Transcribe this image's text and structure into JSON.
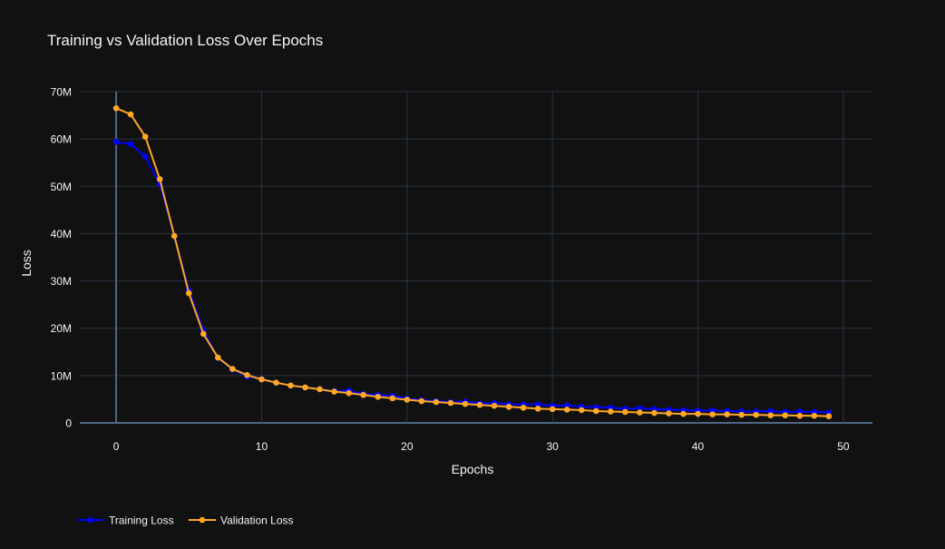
{
  "chart_data": {
    "type": "line",
    "title": "Training vs Validation Loss Over Epochs",
    "xlabel": "Epochs",
    "ylabel": "Loss",
    "xlim": [
      -2.5,
      52
    ],
    "ylim": [
      0,
      70000000
    ],
    "x_ticks": [
      0,
      10,
      20,
      30,
      40,
      50
    ],
    "x_tick_labels": [
      "0",
      "10",
      "20",
      "30",
      "40",
      "50"
    ],
    "y_ticks": [
      0,
      10000000,
      20000000,
      30000000,
      40000000,
      50000000,
      60000000,
      70000000
    ],
    "y_tick_labels": [
      "0",
      "10M",
      "20M",
      "30M",
      "40M",
      "50M",
      "60M",
      "70M"
    ],
    "grid": true,
    "legend_position": "bottom-left",
    "x": [
      0,
      1,
      2,
      3,
      4,
      5,
      6,
      7,
      8,
      9,
      10,
      11,
      12,
      13,
      14,
      15,
      16,
      17,
      18,
      19,
      20,
      21,
      22,
      23,
      24,
      25,
      26,
      27,
      28,
      29,
      30,
      31,
      32,
      33,
      34,
      35,
      36,
      37,
      38,
      39,
      40,
      41,
      42,
      43,
      44,
      45,
      46,
      47,
      48,
      49
    ],
    "series": [
      {
        "name": "Training Loss",
        "color": "#0000ff",
        "values": [
          59400000,
          58900000,
          56300000,
          50500000,
          39500000,
          28000000,
          19500000,
          13700000,
          11300000,
          9800000,
          9300000,
          8500000,
          7900000,
          7500000,
          7100000,
          6700000,
          6800000,
          6100000,
          5900000,
          5700000,
          5100000,
          4800000,
          4600000,
          4400000,
          4500000,
          4100000,
          4200000,
          3900000,
          3900000,
          3900000,
          3600000,
          3700000,
          3400000,
          3300000,
          3200000,
          3000000,
          3100000,
          2900000,
          2800000,
          2700000,
          2600000,
          2600000,
          2500000,
          2400000,
          2400000,
          2500000,
          2300000,
          2400000,
          2300000,
          2200000
        ]
      },
      {
        "name": "Validation Loss",
        "color": "#ffa726",
        "values": [
          66500000,
          65200000,
          60500000,
          51500000,
          39500000,
          27400000,
          18800000,
          13800000,
          11400000,
          10100000,
          9200000,
          8500000,
          7900000,
          7500000,
          7100000,
          6600000,
          6300000,
          5900000,
          5500000,
          5200000,
          4900000,
          4600000,
          4400000,
          4200000,
          4000000,
          3800000,
          3600000,
          3400000,
          3200000,
          3000000,
          2900000,
          2800000,
          2700000,
          2500000,
          2400000,
          2300000,
          2200000,
          2100000,
          2000000,
          1900000,
          1900000,
          1800000,
          1800000,
          1700000,
          1700000,
          1600000,
          1600000,
          1500000,
          1500000,
          1400000
        ]
      }
    ]
  }
}
